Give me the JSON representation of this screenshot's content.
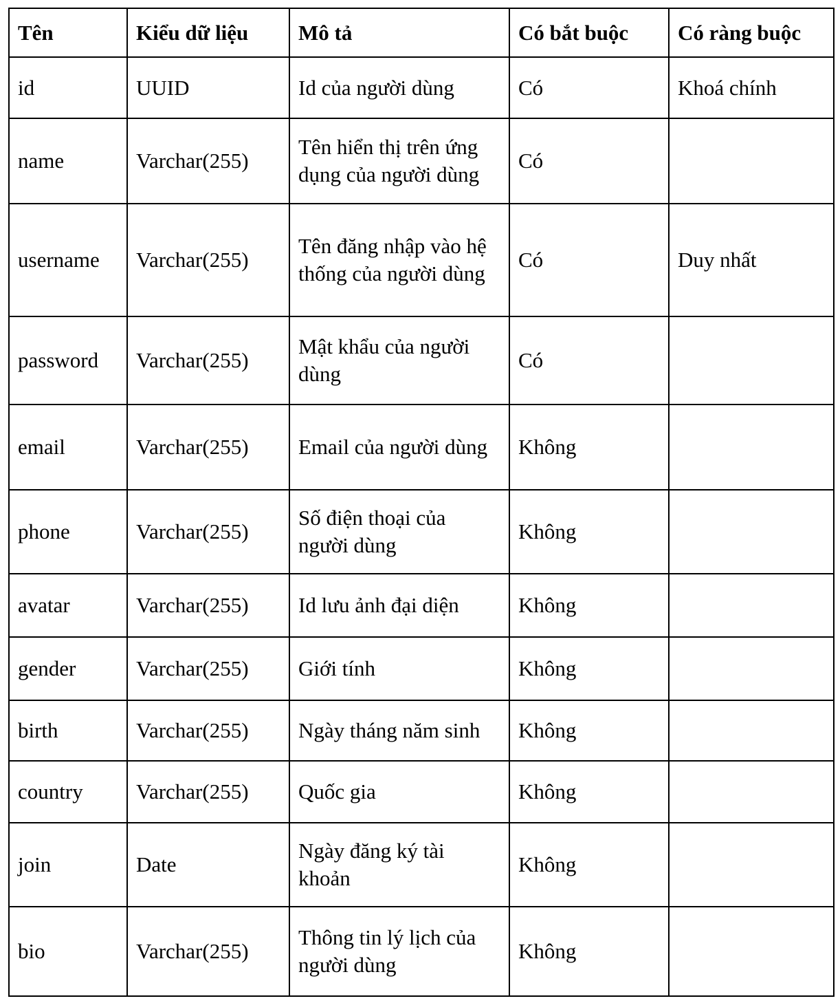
{
  "table": {
    "headers": [
      "Tên",
      "Kiểu dữ liệu",
      "Mô tả",
      "Có bắt buộc",
      "Có ràng buộc"
    ],
    "rows": [
      [
        "id",
        "UUID",
        "Id của người dùng",
        "Có",
        "Khoá chính"
      ],
      [
        "name",
        "Varchar(255)",
        "Tên hiển thị trên ứng dụng của người dùng",
        "Có",
        ""
      ],
      [
        "username",
        "Varchar(255)",
        "Tên đăng nhập vào hệ thống của người dùng",
        "Có",
        "Duy nhất"
      ],
      [
        "password",
        "Varchar(255)",
        "Mật khẩu của người dùng",
        "Có",
        ""
      ],
      [
        "email",
        "Varchar(255)",
        "Email của người dùng",
        "Không",
        ""
      ],
      [
        "phone",
        "Varchar(255)",
        "Số điện thoại của người dùng",
        "Không",
        ""
      ],
      [
        "avatar",
        "Varchar(255)",
        "Id lưu ảnh đại diện",
        "Không",
        ""
      ],
      [
        "gender",
        "Varchar(255)",
        "Giới tính",
        "Không",
        ""
      ],
      [
        "birth",
        "Varchar(255)",
        "Ngày tháng năm sinh",
        "Không",
        ""
      ],
      [
        "country",
        "Varchar(255)",
        "Quốc gia",
        "Không",
        ""
      ],
      [
        "join",
        "Date",
        "Ngày đăng ký tài khoản",
        "Không",
        ""
      ],
      [
        "bio",
        "Varchar(255)",
        "Thông tin lý lịch của người dùng",
        "Không",
        ""
      ]
    ]
  }
}
